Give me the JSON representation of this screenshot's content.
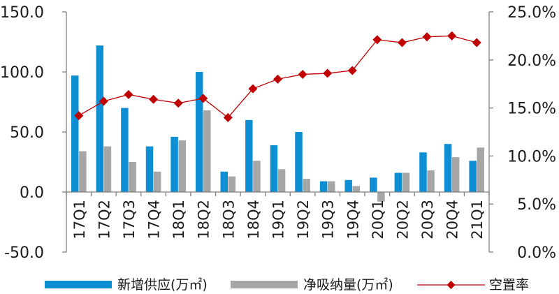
{
  "chart_data": {
    "type": "bar",
    "categories": [
      "17Q1",
      "17Q2",
      "17Q3",
      "17Q4",
      "18Q1",
      "18Q2",
      "18Q3",
      "18Q4",
      "19Q1",
      "19Q2",
      "19Q3",
      "19Q4",
      "20Q1",
      "20Q2",
      "20Q3",
      "20Q4",
      "21Q1"
    ],
    "series": [
      {
        "name": "新增供应(万㎡)",
        "type": "bar",
        "axis": "left",
        "color": "#0f8fd3",
        "values": [
          97,
          122,
          70,
          38,
          46,
          100,
          17,
          60,
          39,
          50,
          9,
          10,
          12,
          16,
          33,
          40,
          26
        ]
      },
      {
        "name": "净吸纳量(万㎡)",
        "type": "bar",
        "axis": "left",
        "color": "#a6a6a6",
        "values": [
          34,
          38,
          25,
          17,
          43,
          68,
          13,
          26,
          19,
          11,
          9,
          5,
          -8,
          16,
          18,
          29,
          37
        ]
      },
      {
        "name": "空置率",
        "type": "line",
        "axis": "right",
        "color": "#c00000",
        "marker": "diamond",
        "values": [
          14.2,
          15.7,
          16.4,
          15.9,
          15.5,
          16.0,
          14.0,
          17.0,
          18.0,
          18.5,
          18.6,
          18.9,
          22.1,
          21.8,
          22.4,
          22.5,
          21.8
        ]
      }
    ],
    "left_axis": {
      "ylim": [
        -50,
        150
      ],
      "ticks": [
        "-50.0",
        "0.0",
        "50.0",
        "100.0",
        "150.0"
      ]
    },
    "right_axis": {
      "ylim": [
        0,
        25
      ],
      "ticks": [
        "0.0%",
        "5.0%",
        "10.0%",
        "15.0%",
        "20.0%",
        "25.0%"
      ]
    },
    "grid": false,
    "legend_position": "bottom"
  }
}
